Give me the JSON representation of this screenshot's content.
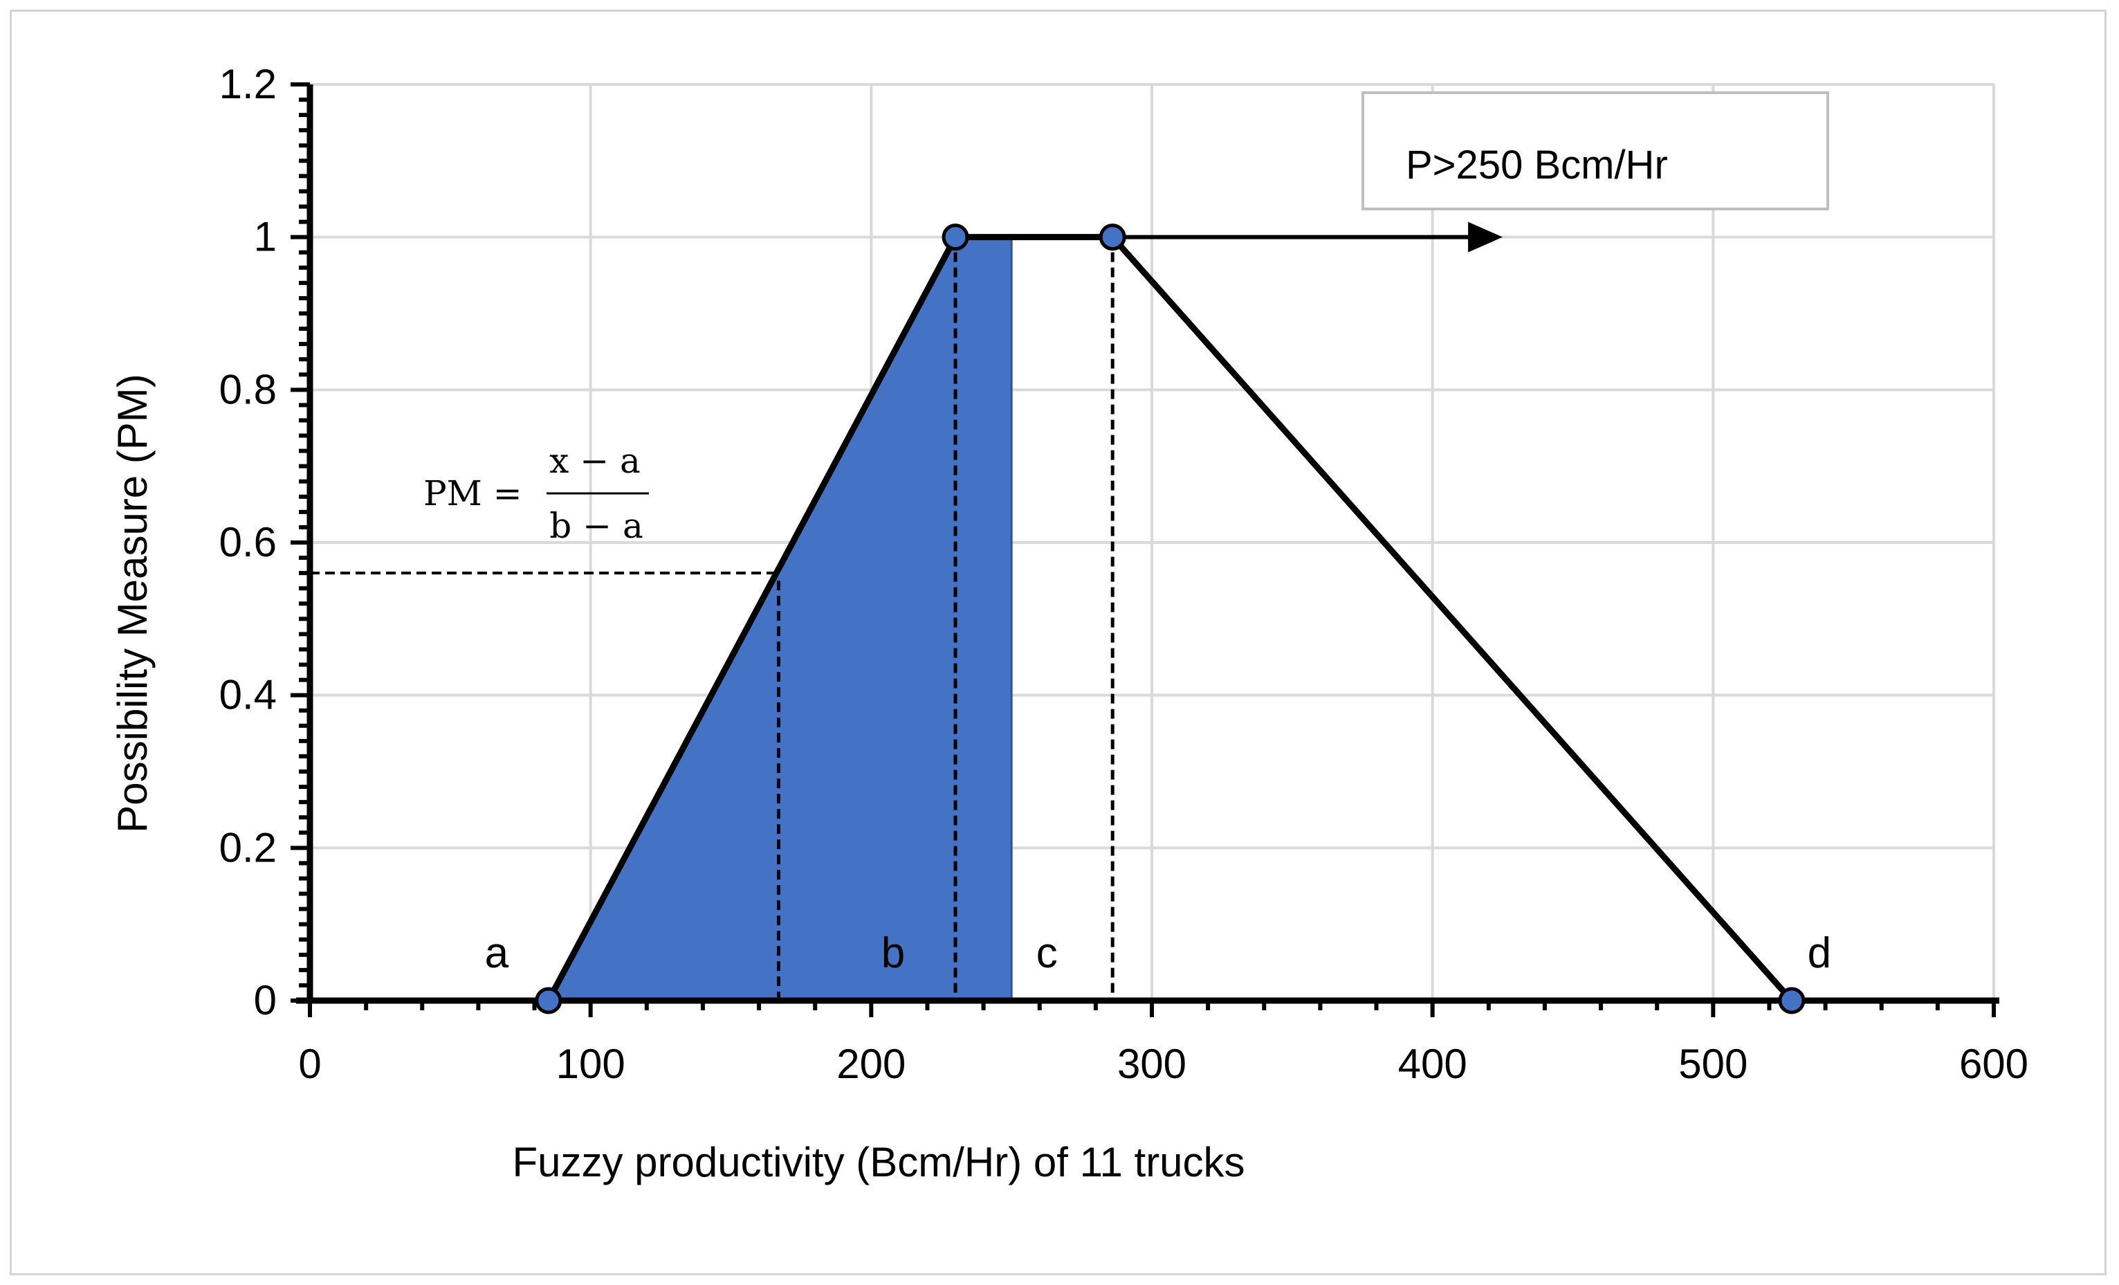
{
  "chart_data": {
    "type": "area",
    "title": "",
    "xlabel": "Fuzzy productivity (Bcm/Hr) of 11 trucks",
    "ylabel": "Possibility Measure (PM)",
    "xlim": [
      0,
      600
    ],
    "ylim": [
      0,
      1.2
    ],
    "xticks": [
      0,
      100,
      200,
      300,
      400,
      500,
      600
    ],
    "yticks": [
      0,
      0.2,
      0.4,
      0.6,
      0.8,
      1,
      1.2
    ],
    "xtick_labels": [
      "0",
      "100",
      "200",
      "300",
      "400",
      "500",
      "600"
    ],
    "ytick_labels": [
      "0",
      "0.2",
      "0.4",
      "0.6",
      "0.8",
      "1",
      "1.2"
    ],
    "grid": true,
    "series": [
      {
        "points": [
          {
            "x": 85,
            "y": 0
          },
          {
            "x": 230,
            "y": 1
          },
          {
            "x": 286,
            "y": 1
          },
          {
            "x": 528,
            "y": 0
          }
        ]
      }
    ],
    "shaded_region": {
      "x_from": 85,
      "x_to": 250,
      "color": "#4472C4"
    },
    "point_labels": [
      {
        "text": "a",
        "x": 85,
        "y": 0
      },
      {
        "text": "b",
        "x": 230,
        "y": 0
      },
      {
        "text": "c",
        "x": 286,
        "y": 0
      },
      {
        "text": "d",
        "x": 528,
        "y": 0
      }
    ],
    "reference_lines": [
      {
        "x": 167,
        "y": 0.56
      },
      {
        "x": 230,
        "y": 1
      },
      {
        "x": 286,
        "y": 1
      }
    ],
    "arrow": {
      "x_from": 230,
      "x_to": 425,
      "y": 1
    },
    "callout": {
      "text": "P>250 Bcm/Hr"
    },
    "formula": {
      "lhs": "PM =",
      "numerator": "x − a",
      "denominator": "b − a"
    },
    "colors": {
      "marker": "#4472C4",
      "fill": "#4472C4",
      "grid": "#d9d9d9",
      "line": "#000000"
    }
  }
}
